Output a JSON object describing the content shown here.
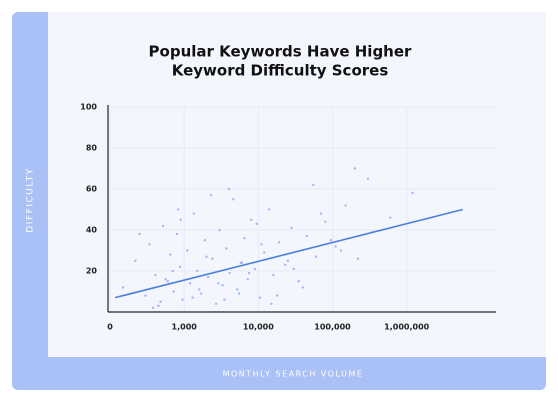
{
  "chart_data": {
    "type": "scatter",
    "title": [
      "Popular Keywords Have Higher",
      "Keyword Difficulty Scores"
    ],
    "x_label": "MONTHLY SEARCH VOLUME",
    "y_label": "DIFFICULTY",
    "x_scale": "log",
    "xlim": [
      100,
      16000000
    ],
    "xticks": [
      0,
      {
        "value": 1000,
        "label": "1,000"
      },
      {
        "value": 10000,
        "label": "10,000"
      },
      {
        "value": 100000,
        "label": "100,000"
      },
      {
        "value": 1000000,
        "label": "1,000,000"
      }
    ],
    "ylim": [
      0,
      100
    ],
    "yticks": [
      20,
      40,
      60,
      80,
      100
    ],
    "grid": true,
    "points": {
      "color": "#8aa8f2",
      "x": [
        150,
        220,
        300,
        340,
        410,
        480,
        520,
        600,
        650,
        720,
        800,
        880,
        950,
        1100,
        1200,
        1350,
        1500,
        1700,
        1900,
        2100,
        2400,
        2700,
        3000,
        3300,
        3700,
        4100,
        4600,
        5200,
        5800,
        6500,
        7200,
        8000,
        9000,
        10500,
        12000,
        14000,
        16000,
        19000,
        23000,
        28000,
        35000,
        45000,
        60000,
        80000,
        110000,
        150000,
        220000,
        350000,
        600000,
        1200000,
        450,
        700,
        900,
        1300,
        2000,
        2900,
        4000,
        5500,
        7500,
        11000,
        15000,
        25000,
        40000,
        70000,
        130000,
        300000,
        250,
        380,
        560,
        830,
        1600,
        2300,
        3500,
        6000,
        9500,
        18000,
        30000,
        55000,
        95000,
        200000
      ],
      "y": [
        12,
        25,
        8,
        33,
        18,
        5,
        42,
        15,
        28,
        10,
        38,
        22,
        6,
        30,
        14,
        48,
        20,
        9,
        35,
        17,
        26,
        4,
        40,
        13,
        31,
        19,
        55,
        11,
        24,
        36,
        16,
        45,
        21,
        7,
        29,
        50,
        18,
        34,
        23,
        41,
        15,
        37,
        27,
        44,
        32,
        52,
        26,
        39,
        46,
        58,
        3,
        20,
        45,
        7,
        27,
        14,
        60,
        9,
        19,
        33,
        4,
        25,
        12,
        48,
        30,
        65,
        38,
        2,
        16,
        50,
        11,
        57,
        6,
        24,
        43,
        8,
        21,
        62,
        35,
        70
      ]
    },
    "trend": {
      "color": "#4a7fe0",
      "x": [
        117,
        5700000
      ],
      "y": [
        7,
        50
      ]
    }
  }
}
